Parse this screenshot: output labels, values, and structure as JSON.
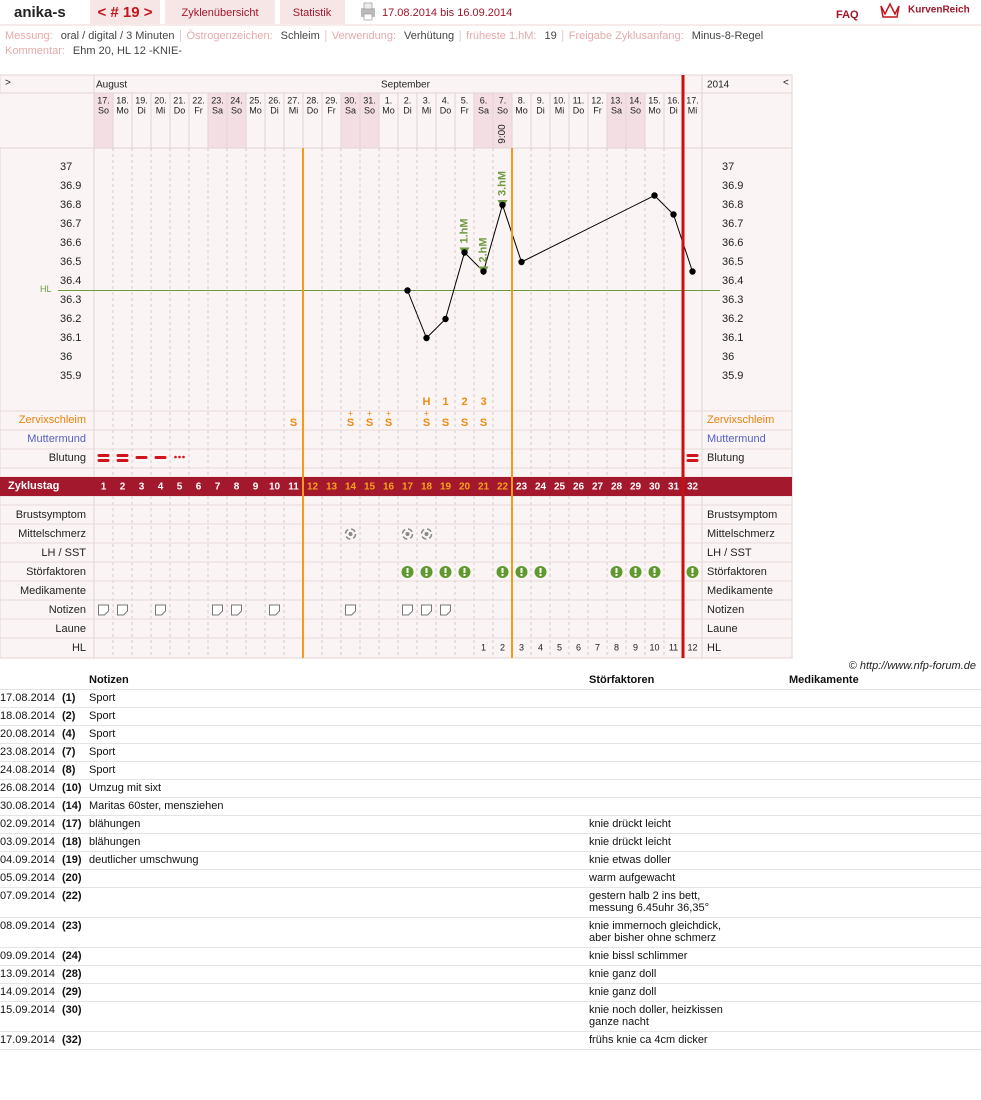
{
  "header": {
    "user": "anika-s",
    "cycle": "< # 19 >",
    "tabs": [
      "Zyklenübersicht",
      "Statistik"
    ],
    "period": "17.08.2014 bis 16.09.2014",
    "faq": "FAQ",
    "brand": "KurvenReich"
  },
  "info": {
    "fields": [
      {
        "label": "Messung:",
        "value": "oral / digital / 3 Minuten"
      },
      {
        "label": "Östrogenzeichen:",
        "value": "Schleim"
      },
      {
        "label": "Verwendung:",
        "value": "Verhütung"
      },
      {
        "label": "früheste 1.hM:",
        "value": "19"
      },
      {
        "label": "Freigabe Zyklusanfang:",
        "value": "Minus-8-Regel"
      }
    ],
    "comment": {
      "label": "Kommentar:",
      "value": "Ehm 20, HL 12 -KNIE-"
    }
  },
  "calendar": {
    "nav_left": ">",
    "nav_right": "<",
    "months": [
      "August",
      "September"
    ],
    "year": "2014",
    "dates": [
      "17.",
      "18.",
      "19.",
      "20.",
      "21.",
      "22.",
      "23.",
      "24.",
      "25.",
      "26.",
      "27.",
      "28.",
      "29.",
      "30.",
      "31.",
      "1.",
      "2.",
      "3.",
      "4.",
      "5.",
      "6.",
      "7.",
      "8.",
      "9.",
      "10.",
      "11.",
      "12.",
      "13.",
      "14.",
      "15.",
      "16.",
      "17."
    ],
    "weekdays": [
      "So",
      "Mo",
      "Di",
      "Mi",
      "Do",
      "Fr",
      "Sa",
      "So",
      "Mo",
      "Di",
      "Mi",
      "Do",
      "Fr",
      "Sa",
      "So",
      "Mo",
      "Di",
      "Mi",
      "Do",
      "Fr",
      "Sa",
      "So",
      "Mo",
      "Di",
      "Mi",
      "Do",
      "Fr",
      "Sa",
      "So",
      "Mo",
      "Di",
      "Mi"
    ],
    "times": [
      null,
      null,
      null,
      null,
      null,
      null,
      null,
      null,
      null,
      null,
      null,
      null,
      null,
      null,
      null,
      null,
      null,
      null,
      null,
      null,
      null,
      "9:00",
      null,
      null,
      null,
      null,
      null,
      null,
      null,
      null,
      null,
      null
    ]
  },
  "chart_data": {
    "type": "line",
    "x": [
      17,
      18,
      19,
      20,
      21,
      22,
      23,
      30,
      31,
      32
    ],
    "values": [
      36.35,
      36.1,
      36.2,
      36.55,
      36.45,
      36.8,
      36.5,
      36.85,
      36.75,
      36.45
    ],
    "xlim": [
      0.5,
      32.5
    ],
    "ylim": [
      35.7,
      37.1
    ],
    "yticks": [
      35.9,
      36,
      36.1,
      36.2,
      36.3,
      36.4,
      36.5,
      36.6,
      36.7,
      36.8,
      36.9,
      37
    ],
    "color": "#000000",
    "hl_label": "HL",
    "hl_value": 36.35,
    "hl_color": "#6f9a42",
    "annotations": [
      {
        "x": 20,
        "y": 36.55,
        "label": "1.hM"
      },
      {
        "x": 21,
        "y": 36.45,
        "label": "2.hM"
      },
      {
        "x": 22,
        "y": 36.8,
        "label": "3.hM"
      }
    ]
  },
  "rows": {
    "labels": {
      "zervix": "Zervixschleim",
      "muttermund": "Muttermund",
      "blutung": "Blutung",
      "zyklustag": "Zyklustag",
      "brust": "Brustsymptom",
      "mittel": "Mittelschmerz",
      "lh": "LH / SST",
      "stoer": "Störfaktoren",
      "medi": "Medikamente",
      "notizen": "Notizen",
      "laune": "Laune",
      "hl": "HL"
    },
    "cycle_days": [
      1,
      2,
      3,
      4,
      5,
      6,
      7,
      8,
      9,
      10,
      11,
      12,
      13,
      14,
      15,
      16,
      17,
      18,
      19,
      20,
      21,
      22,
      23,
      24,
      25,
      26,
      27,
      28,
      29,
      30,
      31,
      32
    ],
    "fertile_window": [
      12,
      22
    ],
    "peak": [
      null,
      null,
      null,
      null,
      null,
      null,
      null,
      null,
      null,
      null,
      null,
      null,
      null,
      null,
      null,
      null,
      null,
      "H",
      "1",
      "2",
      "3",
      null,
      null,
      null,
      null,
      null,
      null,
      null,
      null,
      null,
      null,
      null
    ],
    "zervix": [
      null,
      null,
      null,
      null,
      null,
      null,
      null,
      null,
      null,
      null,
      "S",
      null,
      null,
      "S",
      "S",
      "S",
      null,
      "S",
      "S",
      "S",
      "S",
      null,
      null,
      null,
      null,
      null,
      null,
      null,
      null,
      null,
      null,
      null
    ],
    "zervix_plus": [
      null,
      null,
      null,
      null,
      null,
      null,
      null,
      null,
      null,
      null,
      null,
      null,
      null,
      "+",
      "+",
      "+",
      null,
      "+",
      null,
      null,
      null,
      null,
      null,
      null,
      null,
      null,
      null,
      null,
      null,
      null,
      null,
      null
    ],
    "hl_counts": [
      null,
      null,
      null,
      null,
      null,
      null,
      null,
      null,
      null,
      null,
      null,
      null,
      null,
      null,
      null,
      null,
      null,
      null,
      null,
      null,
      1,
      2,
      3,
      4,
      5,
      6,
      7,
      8,
      9,
      10,
      11,
      12
    ]
  },
  "copyright": "© http://www.nfp-forum.de",
  "notes_table": {
    "headers": [
      "Notizen",
      "Störfaktoren",
      "Medikamente"
    ],
    "rows": [
      {
        "date": "17.08.2014",
        "day": "(1)",
        "note": "Sport",
        "stoer": null
      },
      {
        "date": "18.08.2014",
        "day": "(2)",
        "note": "Sport",
        "stoer": null
      },
      {
        "date": "20.08.2014",
        "day": "(4)",
        "note": "Sport",
        "stoer": null
      },
      {
        "date": "23.08.2014",
        "day": "(7)",
        "note": "Sport",
        "stoer": null
      },
      {
        "date": "24.08.2014",
        "day": "(8)",
        "note": "Sport",
        "stoer": null
      },
      {
        "date": "26.08.2014",
        "day": "(10)",
        "note": "Umzug mit sixt",
        "stoer": null
      },
      {
        "date": "30.08.2014",
        "day": "(14)",
        "note": "Maritas 60ster, mensziehen",
        "stoer": null
      },
      {
        "date": "02.09.2014",
        "day": "(17)",
        "note": "blähungen",
        "stoer": "knie drückt leicht"
      },
      {
        "date": "03.09.2014",
        "day": "(18)",
        "note": "blähungen",
        "stoer": "knie drückt leicht"
      },
      {
        "date": "04.09.2014",
        "day": "(19)",
        "note": "deutlicher umschwung",
        "stoer": "knie etwas doller"
      },
      {
        "date": "05.09.2014",
        "day": "(20)",
        "note": null,
        "stoer": "warm aufgewacht"
      },
      {
        "date": "07.09.2014",
        "day": "(22)",
        "note": null,
        "stoer": "gestern halb 2 ins bett,\nmessung 6.45uhr 36,35°"
      },
      {
        "date": "08.09.2014",
        "day": "(23)",
        "note": null,
        "stoer": "knie immernoch gleichdick,\naber bisher ohne schmerz"
      },
      {
        "date": "09.09.2014",
        "day": "(24)",
        "note": null,
        "stoer": "knie bissl schlimmer"
      },
      {
        "date": "13.09.2014",
        "day": "(28)",
        "note": null,
        "stoer": "knie ganz doll"
      },
      {
        "date": "14.09.2014",
        "day": "(29)",
        "note": null,
        "stoer": "knie ganz doll"
      },
      {
        "date": "15.09.2014",
        "day": "(30)",
        "note": null,
        "stoer": "knie noch doller, heizkissen\nganze nacht"
      },
      {
        "date": "17.09.2014",
        "day": "(32)",
        "note": null,
        "stoer": "frühs knie ca 4cm dicker"
      }
    ]
  }
}
